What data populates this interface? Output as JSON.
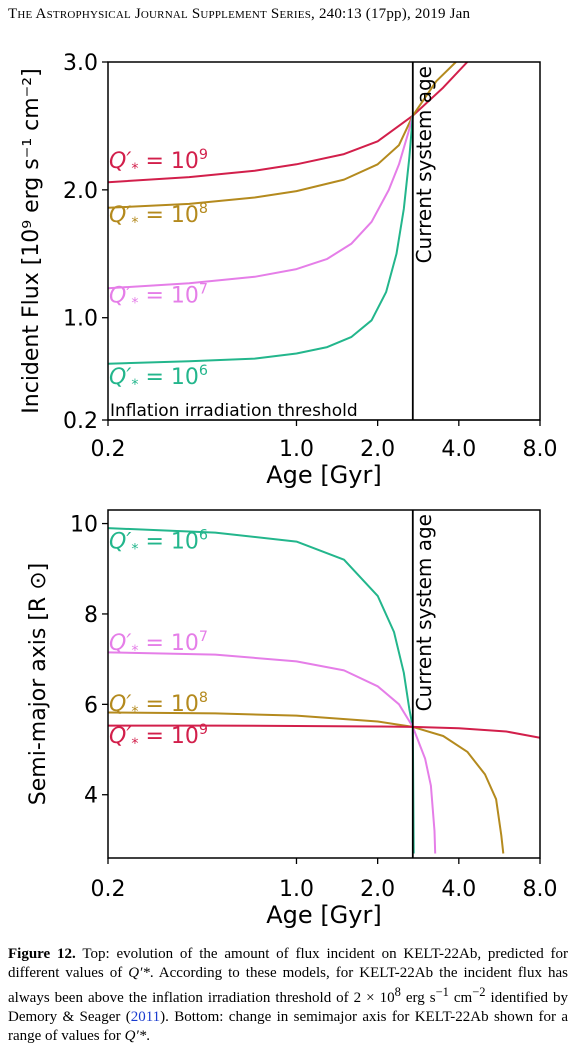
{
  "header": {
    "journal": "The Astrophysical Journal Supplement Series,",
    "citation": "240:13 (17pp), 2019 Jan"
  },
  "colors": {
    "q9": "#d21f4b",
    "q8": "#b48a1e",
    "q7": "#e57ee8",
    "q6": "#23b68c",
    "axis": "#000000"
  },
  "chart_data": [
    {
      "type": "line",
      "panel": "top",
      "xlabel": "Age [Gyr]",
      "ylabel": "Incident Flux [10⁹ erg s⁻¹ cm⁻²]",
      "xscale": "log",
      "xlim": [
        0.2,
        8.0
      ],
      "ylim": [
        0.2,
        3.0
      ],
      "xticks": [
        "0.2",
        "1.0",
        "2.0",
        "4.0",
        "8.0"
      ],
      "yticks": [
        "0.2",
        "1.0",
        "2.0",
        "3.0"
      ],
      "vline": {
        "x": 2.7,
        "label": "Current system age"
      },
      "hline": {
        "y": 0.2,
        "label": "Inflation irradiation threshold"
      },
      "series": [
        {
          "name": "Q′* = 10⁹",
          "color_key": "q9",
          "x": [
            0.2,
            0.4,
            0.7,
            1.0,
            1.5,
            2.0,
            2.7,
            3.5,
            4.3
          ],
          "y": [
            2.06,
            2.1,
            2.15,
            2.2,
            2.28,
            2.38,
            2.58,
            2.8,
            3.0
          ]
        },
        {
          "name": "Q′* = 10⁸",
          "color_key": "q8",
          "x": [
            0.2,
            0.4,
            0.7,
            1.0,
            1.5,
            2.0,
            2.4,
            2.7,
            3.3,
            3.9
          ],
          "y": [
            1.86,
            1.89,
            1.94,
            1.99,
            2.08,
            2.2,
            2.35,
            2.58,
            2.85,
            3.0
          ]
        },
        {
          "name": "Q′* = 10⁷",
          "color_key": "q7",
          "x": [
            0.2,
            0.4,
            0.7,
            1.0,
            1.3,
            1.6,
            1.9,
            2.2,
            2.4,
            2.6,
            2.7
          ],
          "y": [
            1.23,
            1.27,
            1.32,
            1.38,
            1.46,
            1.58,
            1.75,
            2.0,
            2.2,
            2.45,
            2.58
          ]
        },
        {
          "name": "Q′* = 10⁶",
          "color_key": "q6",
          "x": [
            0.2,
            0.4,
            0.7,
            1.0,
            1.3,
            1.6,
            1.9,
            2.15,
            2.35,
            2.5,
            2.62,
            2.7
          ],
          "y": [
            0.64,
            0.66,
            0.68,
            0.72,
            0.77,
            0.85,
            0.98,
            1.2,
            1.5,
            1.85,
            2.25,
            2.58
          ]
        }
      ],
      "labels": [
        {
          "text": "10",
          "exp": "9",
          "color_key": "q9",
          "x": 0.2,
          "y": 2.17
        },
        {
          "text": "10",
          "exp": "8",
          "color_key": "q8",
          "x": 0.2,
          "y": 1.75
        },
        {
          "text": "10",
          "exp": "7",
          "color_key": "q7",
          "x": 0.2,
          "y": 1.12
        },
        {
          "text": "10",
          "exp": "6",
          "color_key": "q6",
          "x": 0.2,
          "y": 0.48
        }
      ]
    },
    {
      "type": "line",
      "panel": "bottom",
      "xlabel": "Age [Gyr]",
      "ylabel": "Semi-major axis [R ⊙]",
      "xscale": "log",
      "xlim": [
        0.2,
        8.0
      ],
      "ylim": [
        2.6,
        10.3
      ],
      "xticks": [
        "0.2",
        "1.0",
        "2.0",
        "4.0",
        "8.0"
      ],
      "yticks": [
        "4",
        "6",
        "8",
        "10"
      ],
      "vline": {
        "x": 2.7,
        "label": "Current system age"
      },
      "series": [
        {
          "name": "Q′* = 10⁶",
          "color_key": "q6",
          "x": [
            0.2,
            0.5,
            1.0,
            1.5,
            2.0,
            2.3,
            2.5,
            2.62,
            2.7,
            2.72
          ],
          "y": [
            9.9,
            9.8,
            9.6,
            9.2,
            8.4,
            7.6,
            6.7,
            5.9,
            5.5,
            2.7
          ]
        },
        {
          "name": "Q′* = 10⁷",
          "color_key": "q7",
          "x": [
            0.2,
            0.5,
            1.0,
            1.5,
            2.0,
            2.4,
            2.7,
            3.0,
            3.15,
            3.25,
            3.27
          ],
          "y": [
            7.15,
            7.1,
            6.95,
            6.75,
            6.4,
            6.0,
            5.5,
            4.8,
            4.2,
            3.2,
            2.7
          ]
        },
        {
          "name": "Q′* = 10⁸",
          "color_key": "q8",
          "x": [
            0.2,
            0.5,
            1.0,
            2.0,
            2.7,
            3.5,
            4.3,
            5.0,
            5.5,
            5.75,
            5.85
          ],
          "y": [
            5.82,
            5.8,
            5.75,
            5.62,
            5.5,
            5.3,
            4.95,
            4.45,
            3.9,
            3.1,
            2.7
          ]
        },
        {
          "name": "Q′* = 10⁹",
          "color_key": "q9",
          "x": [
            0.2,
            0.5,
            1.0,
            2.0,
            2.7,
            4.0,
            6.0,
            8.0
          ],
          "y": [
            5.53,
            5.53,
            5.52,
            5.51,
            5.5,
            5.47,
            5.4,
            5.26
          ]
        }
      ],
      "labels": [
        {
          "text": "10",
          "exp": "6",
          "color_key": "q6",
          "x": 0.2,
          "y": 9.45
        },
        {
          "text": "10",
          "exp": "7",
          "color_key": "q7",
          "x": 0.2,
          "y": 7.2
        },
        {
          "text": "10",
          "exp": "8",
          "color_key": "q8",
          "x": 0.2,
          "y": 5.85
        },
        {
          "text": "10",
          "exp": "9",
          "color_key": "q9",
          "x": 0.2,
          "y": 5.15
        }
      ]
    }
  ],
  "caption": {
    "label": "Figure 12.",
    "text_1": " Top: evolution of the amount of flux incident on KELT-22Ab, predicted for different values of ",
    "q_symbol": "Q′*",
    "text_2": ". According to these models, for KELT-22Ab the incident flux has always been above the inflation irradiation threshold of 2 × 10",
    "exp_8": "8",
    "text_3": " erg s",
    "exp_m1": "−1",
    "text_4": " cm",
    "exp_m2": "−2",
    "text_5": " identified by Demory & Seager (",
    "cite_year": "2011",
    "text_6": "). Bottom: change in semimajor axis for KELT-22Ab shown for a range of values for ",
    "q_symbol_2": "Q′*",
    "text_7": "."
  }
}
